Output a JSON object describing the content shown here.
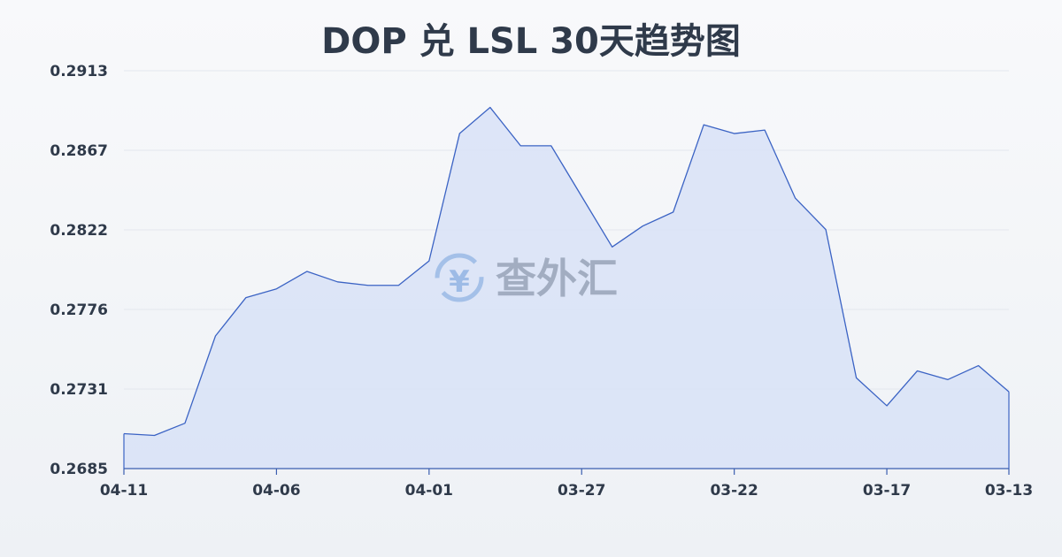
{
  "chart_data": {
    "type": "area",
    "title": "DOP 兑 LSL 30天趋势图",
    "xlabel": "",
    "ylabel": "",
    "ylim": [
      0.2685,
      0.2913
    ],
    "yticks": [
      "0.2913",
      "0.2867",
      "0.2822",
      "0.2776",
      "0.2731",
      "0.2685"
    ],
    "xticks": [
      "04-11",
      "04-06",
      "04-01",
      "03-27",
      "03-22",
      "03-17",
      "03-13"
    ],
    "xtick_index": [
      0,
      5,
      10,
      15,
      20,
      25,
      29
    ],
    "grid": true,
    "legend": "none",
    "colors": {
      "line": "#3b63c4",
      "fill": "#d8e2f7",
      "grid": "#e3e7ee",
      "text": "#2f3a4a"
    },
    "series": [
      {
        "values": [
          0.2705,
          0.2704,
          0.2711,
          0.2761,
          0.2783,
          0.2788,
          0.2798,
          0.2792,
          0.279,
          0.279,
          0.2804,
          0.2877,
          0.2892,
          0.287,
          0.287,
          0.2841,
          0.2812,
          0.2824,
          0.2832,
          0.2882,
          0.2877,
          0.2879,
          0.284,
          0.2822,
          0.2737,
          0.2721,
          0.2741,
          0.2736,
          0.2744,
          0.2729
        ]
      }
    ]
  },
  "watermark": {
    "text": "查外汇",
    "icon": "yen-exchange-icon",
    "symbol": "¥"
  }
}
